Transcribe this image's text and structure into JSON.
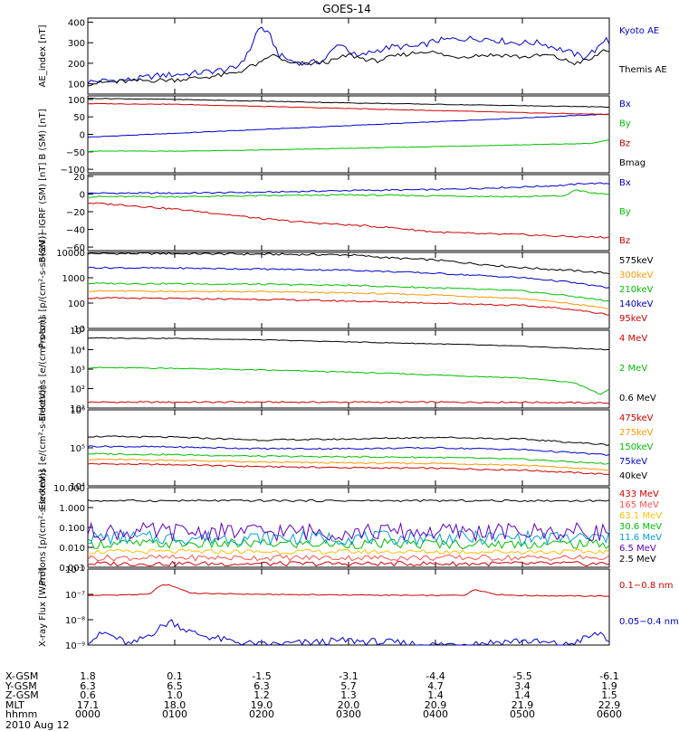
{
  "title": "GOES-14",
  "date": "2010 Aug 12",
  "ephemeris": {
    "labels": [
      "X-GSM",
      "Y-GSM",
      "Z-GSM",
      "MLT",
      "hhmm"
    ],
    "columns": [
      [
        "1.8",
        "6.3",
        "0.6",
        "17.1",
        "0000"
      ],
      [
        "0.1",
        "6.5",
        "1.0",
        "18.0",
        "0100"
      ],
      [
        "-1.5",
        "6.3",
        "1.2",
        "19.0",
        "0200"
      ],
      [
        "-3.1",
        "5.7",
        "1.3",
        "20.0",
        "0300"
      ],
      [
        "-4.4",
        "4.7",
        "1.4",
        "20.9",
        "0400"
      ],
      [
        "-5.5",
        "3.4",
        "1.4",
        "21.9",
        "0500"
      ],
      [
        "-6.1",
        "1.9",
        "1.5",
        "22.9",
        "0600"
      ]
    ]
  },
  "chart_data": [
    {
      "type": "line",
      "id": "ae",
      "ylabel": "AE_index [nT]",
      "ylim": [
        50,
        420
      ],
      "log": false,
      "yticks": [
        100,
        200,
        300,
        400
      ],
      "ytick_labels": [
        "100",
        "200",
        "300",
        "400"
      ],
      "x_unit": "hours since 2010-08-12 00:00",
      "xlim": [
        0,
        6
      ],
      "series": [
        {
          "name": "Kyoto AE",
          "color": "#0000d0",
          "x": [
            0,
            0.2,
            0.5,
            0.8,
            1.2,
            1.5,
            1.7,
            1.85,
            1.95,
            2.0,
            2.1,
            2.2,
            2.35,
            2.5,
            2.7,
            2.9,
            3.1,
            3.3,
            3.5,
            3.8,
            4.0,
            4.3,
            4.6,
            4.9,
            5.2,
            5.5,
            5.7,
            5.9,
            5.96,
            6.0
          ],
          "y": [
            110,
            115,
            120,
            140,
            150,
            165,
            175,
            250,
            360,
            375,
            330,
            240,
            210,
            200,
            210,
            300,
            230,
            260,
            280,
            280,
            310,
            320,
            320,
            300,
            300,
            260,
            230,
            280,
            330,
            300
          ]
        },
        {
          "name": "Themis AE",
          "color": "#000000",
          "x": [
            0,
            0.3,
            0.6,
            1.0,
            1.3,
            1.6,
            1.75,
            1.9,
            2.0,
            2.1,
            2.2,
            2.3,
            2.5,
            2.8,
            3.0,
            3.3,
            3.6,
            3.9,
            4.2,
            4.5,
            4.8,
            5.0,
            5.3,
            5.6,
            5.8,
            5.95,
            6.0
          ],
          "y": [
            100,
            110,
            115,
            120,
            130,
            145,
            160,
            190,
            200,
            240,
            230,
            200,
            195,
            210,
            240,
            210,
            240,
            260,
            230,
            240,
            240,
            230,
            240,
            200,
            220,
            270,
            260
          ]
        }
      ]
    },
    {
      "type": "line",
      "id": "b_sm",
      "ylabel": "B (SM) [nT]",
      "ylim": [
        -110,
        110
      ],
      "log": false,
      "yticks": [
        -100,
        -50,
        0,
        50,
        100
      ],
      "ytick_labels": [
        "−100",
        "−50",
        "0",
        "50",
        "100"
      ],
      "xlim": [
        0,
        6
      ],
      "series": [
        {
          "name": "Bx",
          "color": "#0000d0",
          "x": [
            0,
            6
          ],
          "y": [
            -8,
            58
          ]
        },
        {
          "name": "By",
          "color": "#00c000",
          "x": [
            0,
            1,
            2,
            3,
            4,
            5,
            5.8,
            6
          ],
          "y": [
            -48,
            -48,
            -45,
            -40,
            -35,
            -30,
            -26,
            -15
          ]
        },
        {
          "name": "Bz",
          "color": "#d00000",
          "x": [
            0,
            1,
            2,
            3,
            4,
            5,
            6
          ],
          "y": [
            88,
            86,
            80,
            74,
            68,
            62,
            57
          ]
        },
        {
          "name": "Bmag",
          "color": "#000000",
          "x": [
            0,
            1,
            2,
            3,
            4,
            5,
            6
          ],
          "y": [
            103,
            100,
            95,
            90,
            86,
            82,
            78
          ]
        }
      ]
    },
    {
      "type": "line",
      "id": "b_minus_igrf",
      "ylabel": "B(SM)−IGRF (SM) [nT]",
      "ylim": [
        -64,
        22
      ],
      "log": false,
      "yticks": [
        -60,
        -40,
        -20,
        0,
        20
      ],
      "ytick_labels": [
        "−60",
        "−40",
        "−20",
        "0",
        "20"
      ],
      "xlim": [
        0,
        6
      ],
      "series": [
        {
          "name": "Bx",
          "color": "#0000d0",
          "x": [
            0,
            1,
            2,
            3,
            4,
            5,
            5.5,
            5.7,
            6
          ],
          "y": [
            1,
            1,
            2,
            4,
            5,
            8,
            10,
            12,
            12
          ]
        },
        {
          "name": "By",
          "color": "#00c000",
          "x": [
            0,
            1,
            2,
            3,
            4,
            5,
            5.5,
            5.6,
            5.8,
            6
          ],
          "y": [
            -3,
            -3,
            -2,
            -1,
            -2,
            -3,
            -2,
            5,
            1,
            0
          ]
        },
        {
          "name": "Bz",
          "color": "#d00000",
          "x": [
            0,
            0.5,
            1,
            1.5,
            2,
            2.5,
            3,
            3.5,
            4,
            4.5,
            5,
            5.5,
            6
          ],
          "y": [
            -10,
            -13,
            -17,
            -22,
            -28,
            -32,
            -35,
            -38,
            -43,
            -45,
            -46,
            -48,
            -49
          ]
        }
      ]
    },
    {
      "type": "line",
      "id": "protons_low",
      "ylabel": "Protons [p/(cm²-s-sr-keV)]",
      "ylim": [
        10,
        10000
      ],
      "log": true,
      "yticks": [
        10,
        100,
        1000,
        10000
      ],
      "ytick_labels": [
        "10",
        "100",
        "1000",
        "10000"
      ],
      "xlim": [
        0,
        6
      ],
      "series": [
        {
          "name": "575keV",
          "color": "#000000",
          "x": [
            0,
            1,
            2,
            3,
            3.5,
            4,
            4.5,
            5,
            5.5,
            6
          ],
          "y": [
            9000,
            9000,
            8500,
            8000,
            6000,
            5000,
            3500,
            2500,
            2000,
            1500
          ]
        },
        {
          "name": "300keV",
          "color": "#ff9900",
          "x": [
            0,
            1,
            2,
            3,
            4,
            5,
            5.5,
            6
          ],
          "y": [
            300,
            290,
            280,
            250,
            210,
            150,
            100,
            60
          ]
        },
        {
          "name": "210keV",
          "color": "#00c000",
          "x": [
            0,
            1,
            2,
            3,
            4,
            5,
            5.5,
            6
          ],
          "y": [
            600,
            580,
            550,
            500,
            400,
            300,
            200,
            120
          ]
        },
        {
          "name": "140keV",
          "color": "#0000d0",
          "x": [
            0,
            1,
            2,
            3,
            4,
            5,
            5.5,
            6
          ],
          "y": [
            2500,
            2400,
            2200,
            2000,
            1500,
            1000,
            700,
            400
          ]
        },
        {
          "name": "95keV",
          "color": "#d00000",
          "x": [
            0,
            1,
            2,
            3,
            4,
            5,
            5.5,
            6
          ],
          "y": [
            160,
            150,
            140,
            120,
            100,
            80,
            60,
            35
          ]
        }
      ]
    },
    {
      "type": "line",
      "id": "electrons_high",
      "ylabel": "Electrons [e/(cm²-s-sr)]",
      "ylim": [
        10,
        100000
      ],
      "log": true,
      "yticks": [
        10,
        100,
        1000,
        10000,
        100000
      ],
      "ytick_labels": [
        "10¹",
        "10²",
        "10³",
        "10⁴",
        "10⁵"
      ],
      "xlim": [
        0,
        6
      ],
      "series": [
        {
          "name": "4 MeV",
          "color": "#d00000",
          "x": [
            0,
            1,
            2,
            3,
            4,
            5,
            6
          ],
          "y": [
            20,
            20,
            20,
            20,
            20,
            20,
            18
          ]
        },
        {
          "name": "2 MeV",
          "color": "#00c000",
          "x": [
            0,
            1,
            2,
            3,
            4,
            5,
            5.6,
            5.9,
            6
          ],
          "y": [
            1200,
            1100,
            900,
            700,
            500,
            350,
            200,
            50,
            100
          ]
        },
        {
          "name": "0.6 MeV",
          "color": "#000000",
          "x": [
            0,
            1,
            2,
            3,
            4,
            5,
            6
          ],
          "y": [
            40000,
            38000,
            32000,
            25000,
            20000,
            15000,
            10000
          ]
        }
      ]
    },
    {
      "type": "line",
      "id": "electrons_low",
      "ylabel": "Electrons [e/(cm²-s-sr-keV)]",
      "ylim": [
        10000,
        1000000
      ],
      "log": true,
      "yticks": [
        10000,
        100000,
        1000000
      ],
      "ytick_labels": [
        "10⁴",
        "10⁵",
        "10⁶"
      ],
      "xlim": [
        0,
        6
      ],
      "series": [
        {
          "name": "475keV",
          "color": "#d00000",
          "x": [
            0,
            1,
            2,
            3,
            4,
            5,
            6
          ],
          "y": [
            38000,
            36000,
            32000,
            30000,
            29000,
            26000,
            20000
          ]
        },
        {
          "name": "275keV",
          "color": "#ff9900",
          "x": [
            0,
            1,
            2,
            3,
            4,
            5,
            6
          ],
          "y": [
            50000,
            47000,
            42000,
            40000,
            39000,
            35000,
            26000
          ]
        },
        {
          "name": "150keV",
          "color": "#00c000",
          "x": [
            0,
            1,
            2,
            3,
            4,
            5,
            6
          ],
          "y": [
            70000,
            66000,
            60000,
            58000,
            56000,
            50000,
            38000
          ]
        },
        {
          "name": "75keV",
          "color": "#0000d0",
          "x": [
            0,
            1,
            2,
            3,
            4,
            5,
            6
          ],
          "y": [
            110000,
            105000,
            95000,
            95000,
            100000,
            90000,
            65000
          ]
        },
        {
          "name": "40keV",
          "color": "#000000",
          "x": [
            0,
            1,
            2,
            3,
            4,
            5,
            6
          ],
          "y": [
            200000,
            190000,
            160000,
            170000,
            190000,
            170000,
            120000
          ]
        }
      ]
    },
    {
      "type": "line",
      "id": "protons_high",
      "ylabel": "Protons [p/(cm²-s-sr-keV)]",
      "ylim": [
        0.001,
        10
      ],
      "log": true,
      "yticks": [
        0.001,
        0.01,
        0.1,
        1,
        10
      ],
      "ytick_labels": [
        "0.001",
        "0.010",
        "0.100",
        "1.000",
        "10.000"
      ],
      "xlim": [
        0,
        6
      ],
      "series": [
        {
          "name": "433 MeV",
          "color": "#d00000",
          "level": 0.0015
        },
        {
          "name": "165 MeV",
          "color": "#ff5050",
          "level": 0.003
        },
        {
          "name": "63.1 MeV",
          "color": "#ffc000",
          "level": 0.006
        },
        {
          "name": "30.6 MeV",
          "color": "#00c000",
          "level": 0.015
        },
        {
          "name": "11.6 MeV",
          "color": "#00a0d0",
          "level": 0.03
        },
        {
          "name": "6.5 MeV",
          "color": "#6000c0",
          "level": 0.06
        },
        {
          "name": "2.5 MeV",
          "color": "#000000",
          "level": 2.2
        }
      ]
    },
    {
      "type": "line",
      "id": "xray",
      "ylabel": "X-ray Flux [W/m²]",
      "ylim": [
        1e-09,
        1e-06
      ],
      "log": true,
      "yticks": [
        1e-09,
        1e-08,
        1e-07,
        1e-06
      ],
      "ytick_labels": [
        "10⁻⁹",
        "10⁻⁸",
        "10⁻⁷",
        "10⁻⁶"
      ],
      "xlim": [
        0,
        6
      ],
      "series": [
        {
          "name": "0.1−0.8 nm",
          "color": "#d00000",
          "x": [
            0,
            0.7,
            0.85,
            0.95,
            1.2,
            2,
            3,
            4,
            4.35,
            4.45,
            4.7,
            5,
            6
          ],
          "y": [
            9e-08,
            1e-07,
            2.4e-07,
            2.3e-07,
            1.1e-07,
            1e-07,
            9.5e-08,
            9e-08,
            9.5e-08,
            1.6e-07,
            1e-07,
            9e-08,
            8.5e-08
          ]
        },
        {
          "name": "0.05−0.4 nm",
          "color": "#0000d0",
          "x": [
            0,
            0.2,
            0.5,
            0.8,
            0.95,
            1.2,
            1.6,
            2,
            3,
            4,
            5,
            5.5,
            5.9,
            6
          ],
          "y": [
            1.5e-09,
            3e-09,
            1e-09,
            4e-09,
            9e-09,
            3e-09,
            1.5e-09,
            1e-09,
            1.5e-09,
            1e-09,
            1.5e-09,
            1e-09,
            3e-09,
            1.5e-09
          ]
        }
      ]
    }
  ]
}
